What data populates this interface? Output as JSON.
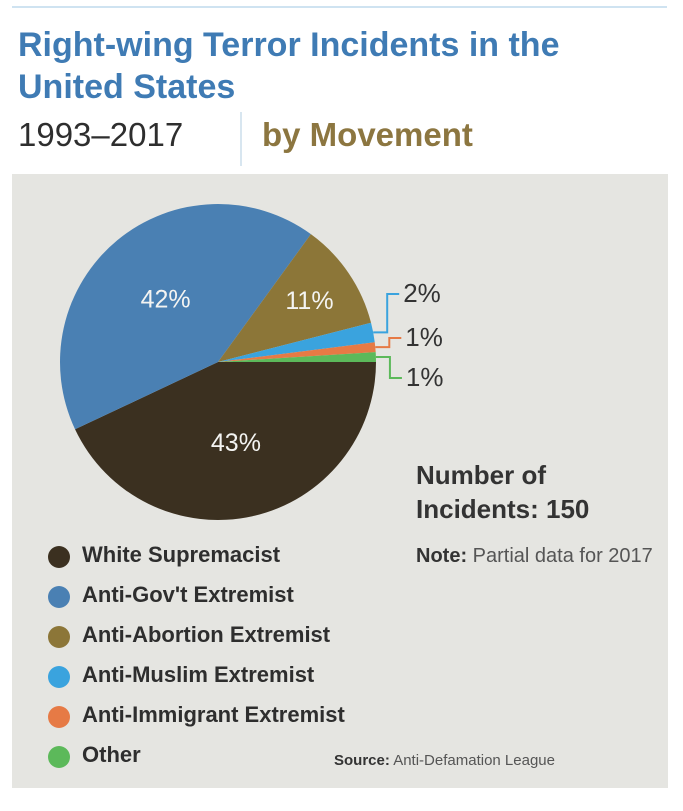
{
  "header": {
    "title": "Right-wing Terror Incidents in the United States",
    "years": "1993–2017",
    "by": "by Movement"
  },
  "chart_data": {
    "type": "pie",
    "title": "Right-wing Terror Incidents in the United States",
    "subtitle": "1993–2017 by Movement",
    "slices": [
      {
        "name": "White Supremacist",
        "value": 43,
        "label": "43%",
        "color": "#3b3020",
        "label_placement": "inside"
      },
      {
        "name": "Anti-Gov't Extremist",
        "value": 42,
        "label": "42%",
        "color": "#4a80b3",
        "label_placement": "inside"
      },
      {
        "name": "Anti-Abortion Extremist",
        "value": 11,
        "label": "11%",
        "color": "#8c7638",
        "label_placement": "inside"
      },
      {
        "name": "Anti-Muslim Extremist",
        "value": 2,
        "label": "2%",
        "color": "#3aa3de",
        "label_placement": "outside"
      },
      {
        "name": "Anti-Immigrant Extremist",
        "value": 1,
        "label": "1%",
        "color": "#e67a45",
        "label_placement": "outside"
      },
      {
        "name": "Other",
        "value": 1,
        "label": "1%",
        "color": "#5cb95a",
        "label_placement": "outside"
      }
    ],
    "legend_position": "bottom-left"
  },
  "total": {
    "line1": "Number of",
    "line2": "Incidents: 150"
  },
  "note": {
    "label": "Note:",
    "text": "Partial data for 2017"
  },
  "source": {
    "label": "Source:",
    "text": "Anti-Defamation League"
  }
}
